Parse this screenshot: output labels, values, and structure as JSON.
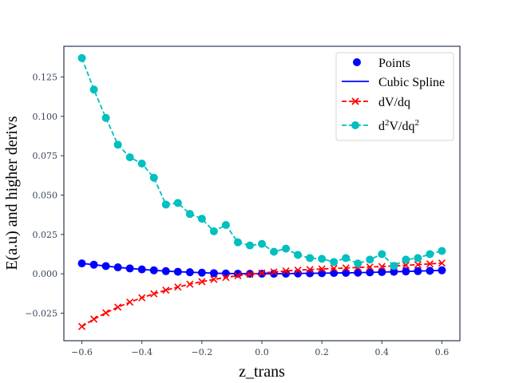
{
  "chart_data": {
    "type": "line",
    "title": "",
    "xlabel": "z_trans",
    "ylabel": "E(a.u) and higher derivs",
    "xlim": [
      -0.66,
      0.66
    ],
    "ylim": [
      -0.0425,
      0.1445
    ],
    "grid": false,
    "legend_position": "top-right",
    "xticks": [
      -0.6,
      -0.4,
      -0.2,
      0.0,
      0.2,
      0.4,
      0.6
    ],
    "xtick_labels": [
      "−0.6",
      "−0.4",
      "−0.2",
      "0.0",
      "0.2",
      "0.4",
      "0.6"
    ],
    "yticks": [
      -0.025,
      0.0,
      0.025,
      0.05,
      0.075,
      0.1,
      0.125
    ],
    "ytick_labels": [
      "−0.025",
      "0.000",
      "0.025",
      "0.050",
      "0.075",
      "0.100",
      "0.125"
    ],
    "x": [
      -0.6,
      -0.56,
      -0.52,
      -0.48,
      -0.44,
      -0.4,
      -0.36,
      -0.32,
      -0.28,
      -0.24,
      -0.2,
      -0.16,
      -0.12,
      -0.08,
      -0.04,
      0.0,
      0.04,
      0.08,
      0.12,
      0.16,
      0.2,
      0.24,
      0.28,
      0.32,
      0.36,
      0.4,
      0.44,
      0.48,
      0.52,
      0.56,
      0.6
    ],
    "series": [
      {
        "name": "Points",
        "legend_label": "Points",
        "style": "markers",
        "marker": "circle",
        "color": "#0000ff",
        "values": [
          0.0066,
          0.0058,
          0.0049,
          0.0041,
          0.0034,
          0.0028,
          0.0022,
          0.0017,
          0.0013,
          0.001,
          0.0007,
          0.0004,
          0.0002,
          0.0001,
          0.0,
          0.0,
          0.0,
          0.0001,
          0.0002,
          0.0003,
          0.0004,
          0.0005,
          0.0006,
          0.0007,
          0.0009,
          0.0011,
          0.0013,
          0.0015,
          0.0017,
          0.0019,
          0.0022
        ]
      },
      {
        "name": "Cubic Spline",
        "legend_label": "Cubic Spline",
        "style": "solid",
        "color": "#0000ff",
        "values": [
          0.0066,
          0.0058,
          0.0049,
          0.0041,
          0.0034,
          0.0028,
          0.0022,
          0.0017,
          0.0013,
          0.001,
          0.0007,
          0.0004,
          0.0002,
          0.0001,
          0.0,
          0.0,
          0.0,
          0.0001,
          0.0002,
          0.0003,
          0.0004,
          0.0005,
          0.0006,
          0.0007,
          0.0009,
          0.0011,
          0.0013,
          0.0015,
          0.0017,
          0.0019,
          0.0022
        ]
      },
      {
        "name": "dV/dq",
        "legend_label": "dV/dq",
        "style": "dashed",
        "marker": "x",
        "color": "#ff0000",
        "values": [
          -0.0335,
          -0.0288,
          -0.0248,
          -0.0212,
          -0.018,
          -0.0152,
          -0.0127,
          -0.0104,
          -0.0084,
          -0.0066,
          -0.005,
          -0.0036,
          -0.0023,
          -0.0012,
          -0.0003,
          0.0005,
          0.0012,
          0.0018,
          0.0023,
          0.0027,
          0.0031,
          0.0034,
          0.0037,
          0.004,
          0.0043,
          0.0046,
          0.005,
          0.0054,
          0.0058,
          0.0063,
          0.0068
        ]
      },
      {
        "name": "d2V/dq2",
        "legend_label": "d²V/dq²",
        "style": "dashed",
        "marker": "circle",
        "color": "#00bfbf",
        "values": [
          0.137,
          0.117,
          0.099,
          0.082,
          0.074,
          0.07,
          0.061,
          0.044,
          0.045,
          0.038,
          0.035,
          0.027,
          0.031,
          0.02,
          0.018,
          0.019,
          0.014,
          0.016,
          0.012,
          0.01,
          0.0095,
          0.0075,
          0.01,
          0.0065,
          0.009,
          0.0125,
          0.005,
          0.009,
          0.01,
          0.0125,
          0.0145
        ]
      }
    ]
  },
  "legend": {
    "items": [
      {
        "label": "Points"
      },
      {
        "label": "Cubic Spline"
      },
      {
        "label": "dV/dq"
      },
      {
        "label_base1": "d",
        "sup1": "2",
        "label_mid": "V/dq",
        "sup2": "2"
      }
    ]
  }
}
